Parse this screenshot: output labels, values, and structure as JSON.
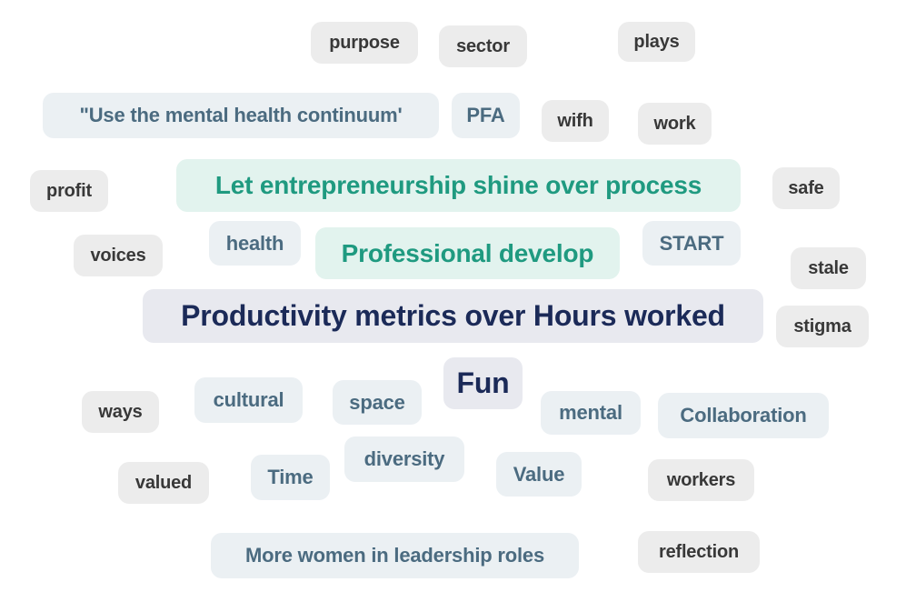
{
  "colors": {
    "gray_text": "#383838",
    "gray_bg": "#ececec",
    "slate_text": "#4b6b80",
    "slate_bg": "#ebf0f3",
    "teal_text": "#1f9a80",
    "teal_bg": "#e2f3ee",
    "navy_text": "#1b2a58",
    "navy_bg": "#e8e9ef"
  },
  "words": [
    {
      "text": "purpose",
      "style": "gray"
    },
    {
      "text": "sector",
      "style": "gray"
    },
    {
      "text": "plays",
      "style": "gray"
    },
    {
      "text": "\"Use the mental health continuum'",
      "style": "slate"
    },
    {
      "text": "PFA",
      "style": "slate"
    },
    {
      "text": "wifh",
      "style": "gray"
    },
    {
      "text": "work",
      "style": "gray"
    },
    {
      "text": "profit",
      "style": "gray"
    },
    {
      "text": "Let entrepreneurship shine over process",
      "style": "teal"
    },
    {
      "text": "safe",
      "style": "gray"
    },
    {
      "text": "voices",
      "style": "gray"
    },
    {
      "text": "health",
      "style": "slate"
    },
    {
      "text": "Professional develop",
      "style": "teal"
    },
    {
      "text": "START",
      "style": "slate"
    },
    {
      "text": "stale",
      "style": "gray"
    },
    {
      "text": "Productivity metrics over Hours worked",
      "style": "navy"
    },
    {
      "text": "stigma",
      "style": "gray"
    },
    {
      "text": "Fun",
      "style": "navy"
    },
    {
      "text": "ways",
      "style": "gray"
    },
    {
      "text": "cultural",
      "style": "slate"
    },
    {
      "text": "space",
      "style": "slate"
    },
    {
      "text": "mental",
      "style": "slate"
    },
    {
      "text": "Collaboration",
      "style": "slate"
    },
    {
      "text": "valued",
      "style": "gray"
    },
    {
      "text": "Time",
      "style": "slate"
    },
    {
      "text": "diversity",
      "style": "slate"
    },
    {
      "text": "Value",
      "style": "slate"
    },
    {
      "text": "workers",
      "style": "gray"
    },
    {
      "text": "More women in leadership roles",
      "style": "slate"
    },
    {
      "text": "reflection",
      "style": "gray"
    }
  ]
}
